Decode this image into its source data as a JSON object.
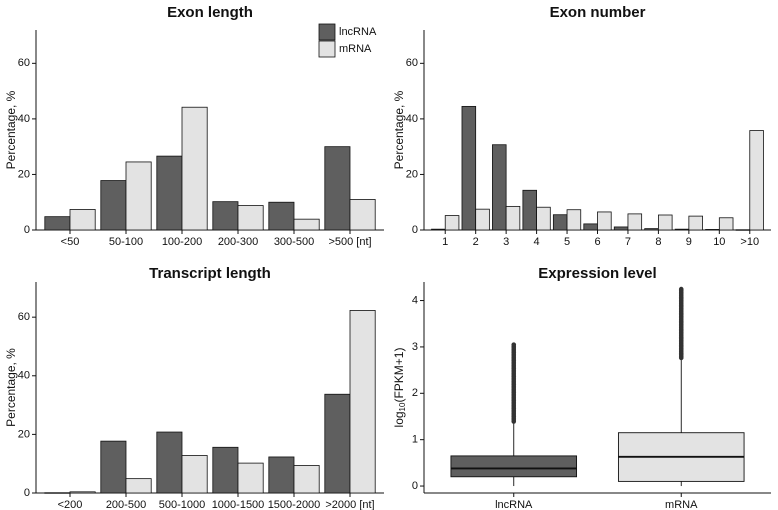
{
  "legend": {
    "entries": [
      {
        "label": "lncRNA",
        "color": "#5f5f5f"
      },
      {
        "label": "mRNA",
        "color": "#e3e3e3"
      }
    ],
    "placement": "top-right of Exon length panel"
  },
  "colors": {
    "lncRNA": "#5f5f5f",
    "mRNA": "#e3e3e3",
    "outline": "#111111",
    "outlier": "#333333"
  },
  "chart_data": [
    {
      "type": "bar",
      "title": "Exon length",
      "ylabel": "Percentage, %",
      "xlabel": "",
      "ylim": [
        0,
        72
      ],
      "yticks": [
        0,
        20,
        40,
        60
      ],
      "categories": [
        "<50",
        "50-100",
        "100-200",
        "200-300",
        "300-500",
        ">500 [nt]"
      ],
      "series": [
        {
          "name": "lncRNA",
          "values": [
            4.8,
            17.8,
            26.6,
            10.2,
            10.0,
            30.0
          ]
        },
        {
          "name": "mRNA",
          "values": [
            7.4,
            24.5,
            44.2,
            8.8,
            3.9,
            11.0
          ]
        }
      ]
    },
    {
      "type": "bar",
      "title": "Exon number",
      "ylabel": "Percentage, %",
      "xlabel": "",
      "ylim": [
        0,
        72
      ],
      "yticks": [
        0,
        20,
        40,
        60
      ],
      "categories": [
        "1",
        "2",
        "3",
        "4",
        "5",
        "6",
        "7",
        "8",
        "9",
        "10",
        ">10"
      ],
      "series": [
        {
          "name": "lncRNA",
          "values": [
            0.3,
            44.5,
            30.7,
            14.3,
            5.5,
            2.2,
            1.1,
            0.5,
            0.3,
            0.2,
            0.1
          ]
        },
        {
          "name": "mRNA",
          "values": [
            5.2,
            7.5,
            8.5,
            8.2,
            7.3,
            6.5,
            5.8,
            5.4,
            5.0,
            4.4,
            35.8
          ]
        }
      ]
    },
    {
      "type": "bar",
      "title": "Transcript length",
      "ylabel": "Percentage, %",
      "xlabel": "",
      "ylim": [
        0,
        72
      ],
      "yticks": [
        0,
        20,
        40,
        60
      ],
      "categories": [
        "<200",
        "200-500",
        "500-1000",
        "1000-1500",
        "1500-2000",
        ">2000 [nt]"
      ],
      "series": [
        {
          "name": "lncRNA",
          "values": [
            0.1,
            17.7,
            20.8,
            15.6,
            12.3,
            33.7
          ]
        },
        {
          "name": "mRNA",
          "values": [
            0.4,
            4.9,
            12.8,
            10.2,
            9.4,
            62.3
          ]
        }
      ]
    },
    {
      "type": "box",
      "title": "Expression level",
      "ylabel": "log10(FPKM+1)",
      "ylabel_parts": {
        "pre": "log",
        "sub": "10",
        "post": "(FPKM+1)"
      },
      "ylim": [
        -0.15,
        4.4
      ],
      "yticks": [
        0,
        1,
        2,
        3,
        4
      ],
      "categories": [
        "lncRNA",
        "mRNA"
      ],
      "boxes": [
        {
          "name": "lncRNA",
          "whisker_low": 0,
          "q1": 0.2,
          "median": 0.38,
          "q3": 0.65,
          "whisker_high": 1.35,
          "outlier_range": [
            1.35,
            3.05
          ]
        },
        {
          "name": "mRNA",
          "whisker_low": 0,
          "q1": 0.1,
          "median": 0.63,
          "q3": 1.15,
          "whisker_high": 2.72,
          "outlier_range": [
            2.72,
            4.25
          ]
        }
      ]
    }
  ]
}
